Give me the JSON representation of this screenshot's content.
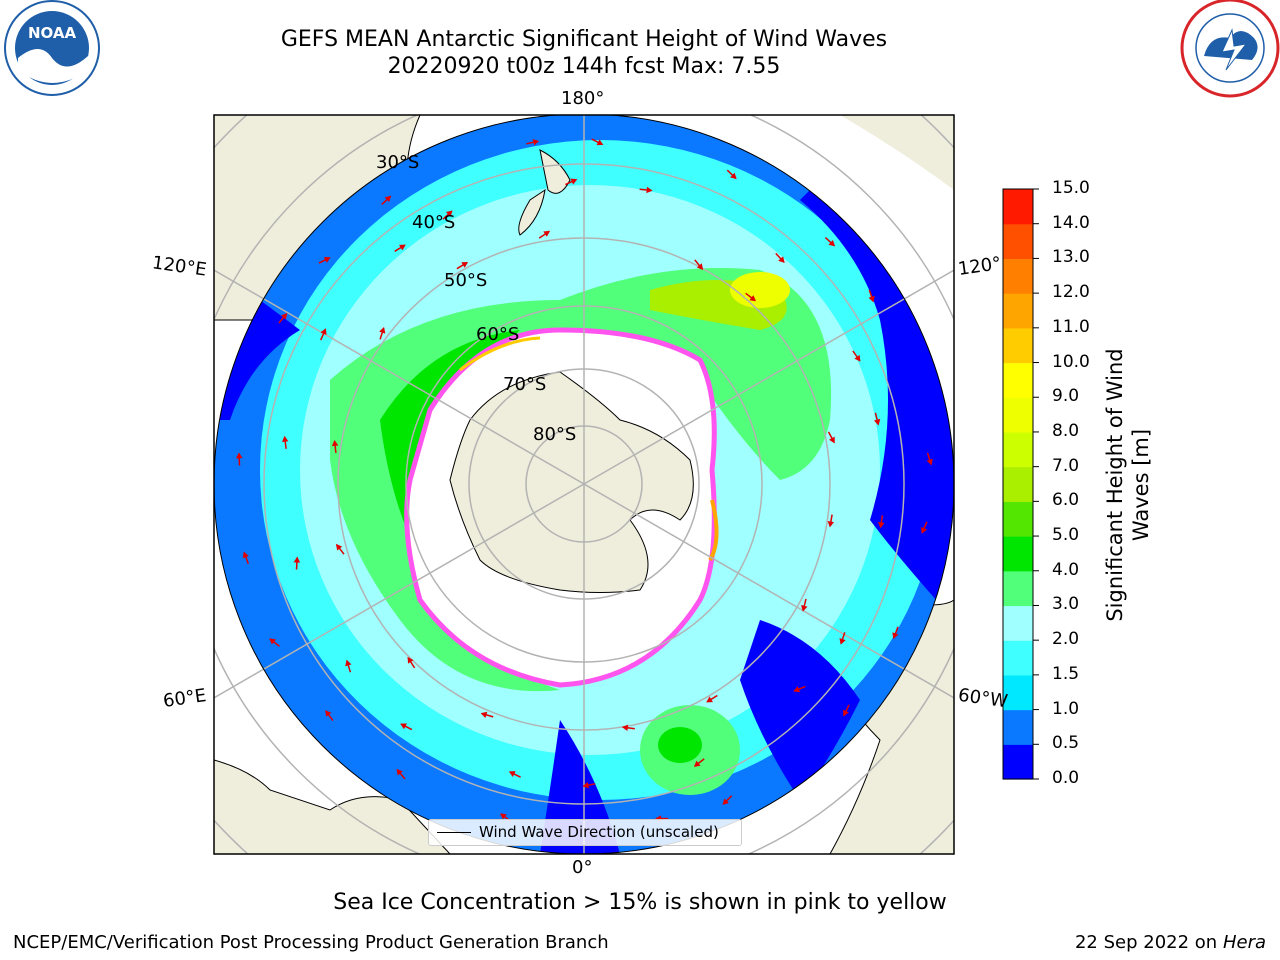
{
  "header": {
    "title_line1": "GEFS MEAN Antarctic Significant Height of Wind Waves",
    "title_line2": "20220920 t00z 144h fcst   Max: 7.55"
  },
  "logos": {
    "noaa": {
      "text": "NOAA",
      "icon": "noaa-logo-icon",
      "color": "#1f5ea8"
    },
    "nws": {
      "icon": "nws-logo-icon",
      "ring_color": "#d8252a",
      "inner_color": "#1f5ea8"
    }
  },
  "map": {
    "projection": "south-polar-stereographic",
    "longitude_labels": {
      "top": "180°",
      "bottom": "0°",
      "upper_left": "120°E",
      "upper_right": "120°",
      "lower_left": "60°E",
      "lower_right": "60°W"
    },
    "latitude_labels": [
      "30°S",
      "40°S",
      "50°S",
      "60°S",
      "70°S",
      "80°S"
    ],
    "colors": {
      "land": "#efeddb",
      "ocean_calm": "#0000ff",
      "ice": "#ffffff",
      "ice_edge": "#ff55ee"
    }
  },
  "legend": {
    "label": "Wind Wave Direction (unscaled)"
  },
  "colorbar": {
    "label": "Significant Height of Wind Waves [m]",
    "ticks": [
      "0.0",
      "0.5",
      "1.0",
      "1.5",
      "2.0",
      "3.0",
      "4.0",
      "5.0",
      "6.0",
      "7.0",
      "8.0",
      "9.0",
      "10.0",
      "11.0",
      "12.0",
      "13.0",
      "14.0",
      "15.0"
    ],
    "colors": [
      "#0000ff",
      "#0a78ff",
      "#00e8ff",
      "#40ffff",
      "#a0ffff",
      "#52ff7a",
      "#00e600",
      "#52e600",
      "#aaee00",
      "#ccff00",
      "#eeff00",
      "#ffff00",
      "#ffcc00",
      "#ffa500",
      "#ff8000",
      "#ff5000",
      "#ff1a00"
    ]
  },
  "footer": {
    "note": "Sea Ice Concentration > 15% is shown in pink to yellow",
    "credit": "NCEP/EMC/Verification Post Processing Product Generation Branch",
    "date": "22 Sep 2022 on",
    "machine": "Hera"
  }
}
